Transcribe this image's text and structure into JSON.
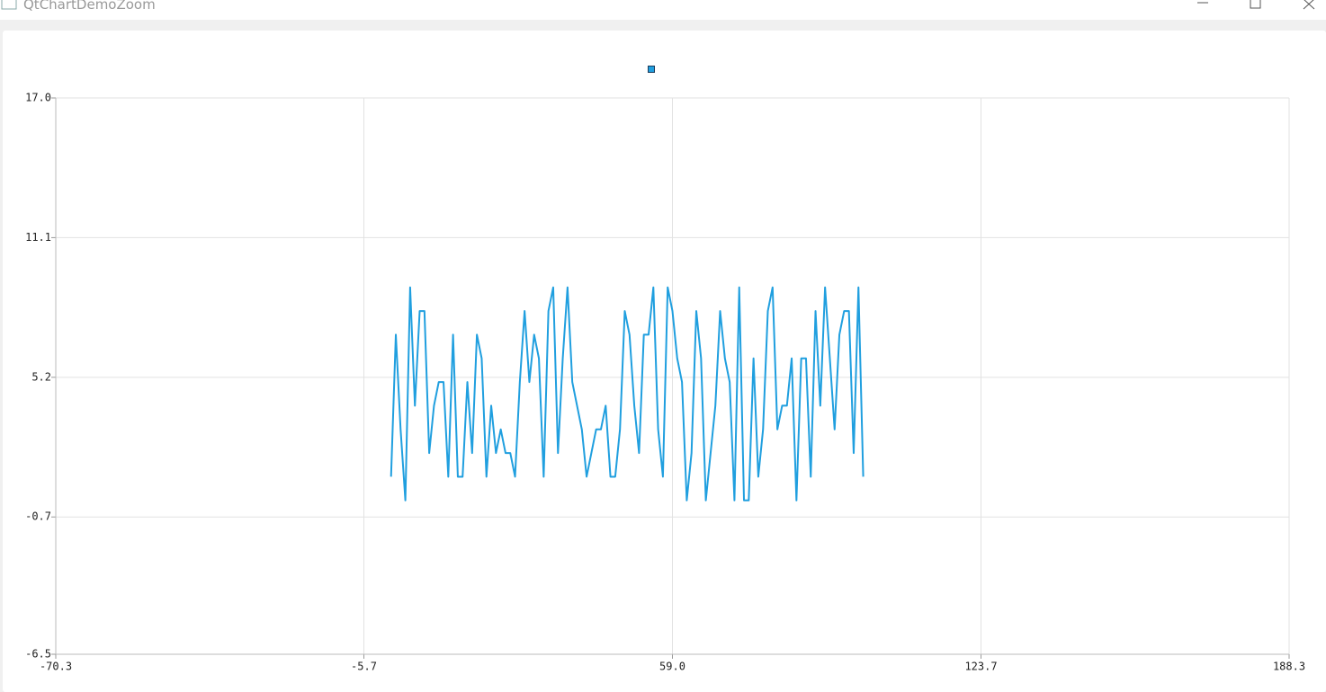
{
  "window": {
    "title": "QtChartDemoZoom"
  },
  "chart_data": {
    "type": "line",
    "x": [
      0,
      1,
      2,
      3,
      4,
      5,
      6,
      7,
      8,
      9,
      10,
      11,
      12,
      13,
      14,
      15,
      16,
      17,
      18,
      19,
      20,
      21,
      22,
      23,
      24,
      25,
      26,
      27,
      28,
      29,
      30,
      31,
      32,
      33,
      34,
      35,
      36,
      37,
      38,
      39,
      40,
      41,
      42,
      43,
      44,
      45,
      46,
      47,
      48,
      49,
      50,
      51,
      52,
      53,
      54,
      55,
      56,
      57,
      58,
      59,
      60,
      61,
      62,
      63,
      64,
      65,
      66,
      67,
      68,
      69,
      70,
      71,
      72,
      73,
      74,
      75,
      76,
      77,
      78,
      79,
      80,
      81,
      82,
      83,
      84,
      85,
      86,
      87,
      88,
      89,
      90,
      91,
      92,
      93,
      94,
      95,
      96,
      97,
      98,
      99
    ],
    "series": [
      {
        "color": "#209fdf",
        "values": [
          1,
          7,
          3,
          0,
          9,
          4,
          8,
          8,
          2,
          4,
          5,
          5,
          1,
          7,
          1,
          1,
          5,
          2,
          7,
          6,
          1,
          4,
          2,
          3,
          2,
          2,
          1,
          5,
          8,
          5,
          7,
          6,
          1,
          8,
          9,
          2,
          6,
          9,
          5,
          4,
          3,
          1,
          2,
          3,
          3,
          4,
          1,
          1,
          3,
          8,
          7,
          4,
          2,
          7,
          7,
          9,
          3,
          1,
          9,
          8,
          6,
          5,
          0,
          2,
          8,
          6,
          0,
          2,
          4,
          8,
          6,
          5,
          0,
          9,
          0,
          0,
          6,
          1,
          3,
          8,
          9,
          3,
          4,
          4,
          6,
          0,
          6,
          6,
          1,
          8,
          4,
          9,
          6,
          3,
          7,
          8,
          8,
          2,
          9,
          1
        ]
      }
    ],
    "xlim": [
      -70.3,
      188.3
    ],
    "ylim": [
      -6.5,
      17
    ],
    "xticks": [
      -70.3,
      -5.7,
      {
        "value": 59,
        "label": "59.0"
      },
      123.7,
      188.3
    ],
    "yticks": [
      -6.5,
      -0.7,
      5.2,
      11.1,
      {
        "value": 17,
        "label": "17.0"
      }
    ],
    "grid": true
  }
}
